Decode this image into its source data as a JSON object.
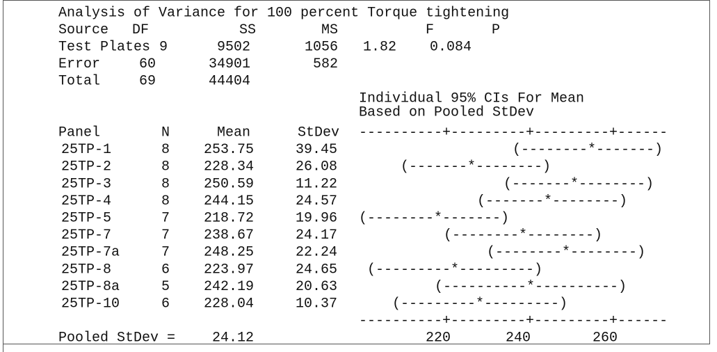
{
  "title": "Analysis of Variance for 100 percent Torque tightening",
  "anova": {
    "headers": [
      "Source",
      "DF",
      "SS",
      "MS",
      "F",
      "P"
    ],
    "rows": [
      [
        "Test Plates",
        9,
        9502,
        1056,
        1.82,
        0.084
      ],
      [
        "Error",
        60,
        34901,
        582
      ],
      [
        "Total",
        69,
        44404
      ]
    ]
  },
  "ci_header": [
    "Individual 95% CIs For Mean",
    "Based on Pooled StDev"
  ],
  "means": {
    "headers": [
      "Panel",
      "N",
      "Mean",
      "StDev"
    ],
    "rows": [
      [
        "25TP-1",
        8,
        253.75,
        39.45,
        "(--------*-------)"
      ],
      [
        "25TP-2",
        8,
        228.34,
        26.08,
        "(-------*--------)"
      ],
      [
        "25TP-3",
        8,
        250.59,
        11.22,
        "(-------*--------)"
      ],
      [
        "25TP-4",
        8,
        244.15,
        24.57,
        "(-------*--------)"
      ],
      [
        "25TP-5",
        7,
        218.72,
        19.96,
        "(--------*-------)"
      ],
      [
        "25TP-7",
        7,
        238.67,
        24.17,
        "(--------*--------)"
      ],
      [
        "25TP-7a",
        7,
        248.25,
        22.24,
        "(--------*--------)"
      ],
      [
        "25TP-8",
        6,
        223.97,
        24.65,
        "(---------*---------)"
      ],
      [
        "25TP-8a",
        5,
        242.19,
        20.63,
        "(----------*----------)"
      ],
      [
        "25TP-10",
        6,
        228.04,
        10.37,
        "(---------*---------)"
      ]
    ]
  },
  "scale_line": "----------+---------+---------+------",
  "scale_labels": [
    220,
    240,
    260
  ],
  "pooled": {
    "label": "Pooled StDev =",
    "value": 24.12
  }
}
